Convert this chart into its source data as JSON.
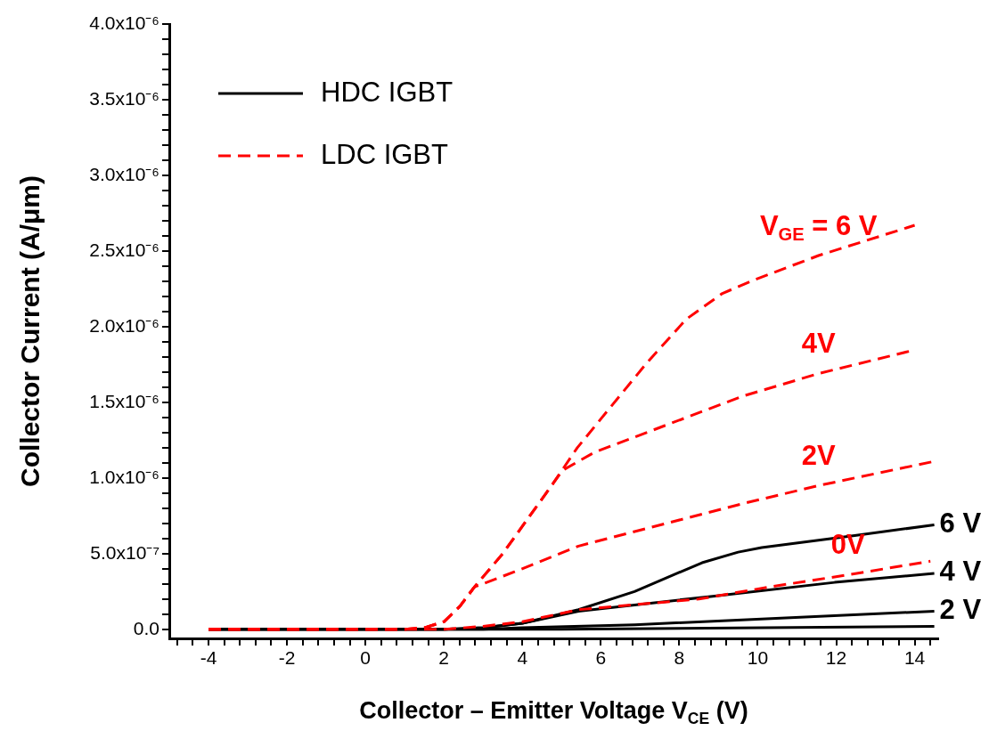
{
  "chart_data": {
    "type": "line",
    "xlabel": "Collector – Emitter Voltage V$_{CE}$ (V)",
    "ylabel": "Collector Current (A/μm)",
    "xlim": [
      -5,
      14.6
    ],
    "ylim": [
      -6e-08,
      4e-06
    ],
    "xticks": [
      {
        "value": -4.8,
        "label": null
      },
      {
        "value": -4.4,
        "label": null
      },
      -4,
      {
        "value": -3.6,
        "label": null
      },
      {
        "value": -3.2,
        "label": null
      },
      {
        "value": -2.8,
        "label": null
      },
      {
        "value": -2.4,
        "label": null
      },
      -2,
      {
        "value": -1.6,
        "label": null
      },
      {
        "value": -1.2,
        "label": null
      },
      {
        "value": -0.8,
        "label": null
      },
      {
        "value": -0.4,
        "label": null
      },
      0,
      {
        "value": 0.4,
        "label": null
      },
      {
        "value": 0.8,
        "label": null
      },
      {
        "value": 1.2,
        "label": null
      },
      {
        "value": 1.6,
        "label": null
      },
      2,
      {
        "value": 2.4,
        "label": null
      },
      {
        "value": 2.8,
        "label": null
      },
      {
        "value": 3.2,
        "label": null
      },
      {
        "value": 3.6,
        "label": null
      },
      4,
      {
        "value": 4.4,
        "label": null
      },
      {
        "value": 4.8,
        "label": null
      },
      {
        "value": 5.2,
        "label": null
      },
      {
        "value": 5.6,
        "label": null
      },
      6,
      {
        "value": 6.4,
        "label": null
      },
      {
        "value": 6.8,
        "label": null
      },
      {
        "value": 7.2,
        "label": null
      },
      {
        "value": 7.6,
        "label": null
      },
      8,
      {
        "value": 8.4,
        "label": null
      },
      {
        "value": 8.8,
        "label": null
      },
      {
        "value": 9.2,
        "label": null
      },
      {
        "value": 9.6,
        "label": null
      },
      10,
      {
        "value": 10.4,
        "label": null
      },
      {
        "value": 10.8,
        "label": null
      },
      {
        "value": 11.2,
        "label": null
      },
      {
        "value": 11.6,
        "label": null
      },
      12,
      {
        "value": 12.4,
        "label": null
      },
      {
        "value": 12.8,
        "label": null
      },
      {
        "value": 13.2,
        "label": null
      },
      {
        "value": 13.6,
        "label": null
      },
      14,
      {
        "value": 14.4,
        "label": null
      }
    ],
    "yticks": [
      {
        "value": 0,
        "label": "0.0"
      },
      {
        "value": 1e-07,
        "label": null
      },
      {
        "value": 2e-07,
        "label": null
      },
      {
        "value": 3e-07,
        "label": null
      },
      {
        "value": 4e-07,
        "label": null
      },
      {
        "value": 5e-07,
        "label": "5.0x10⁻⁷"
      },
      {
        "value": 6e-07,
        "label": null
      },
      {
        "value": 7e-07,
        "label": null
      },
      {
        "value": 8e-07,
        "label": null
      },
      {
        "value": 9e-07,
        "label": null
      },
      {
        "value": 1e-06,
        "label": "1.0x10⁻⁶"
      },
      {
        "value": 1.1e-06,
        "label": null
      },
      {
        "value": 1.2e-06,
        "label": null
      },
      {
        "value": 1.3e-06,
        "label": null
      },
      {
        "value": 1.4e-06,
        "label": null
      },
      {
        "value": 1.5e-06,
        "label": "1.5x10⁻⁶"
      },
      {
        "value": 1.6e-06,
        "label": null
      },
      {
        "value": 1.7e-06,
        "label": null
      },
      {
        "value": 1.8e-06,
        "label": null
      },
      {
        "value": 1.9e-06,
        "label": null
      },
      {
        "value": 2e-06,
        "label": "2.0x10⁻⁶"
      },
      {
        "value": 2.1e-06,
        "label": null
      },
      {
        "value": 2.2e-06,
        "label": null
      },
      {
        "value": 2.3e-06,
        "label": null
      },
      {
        "value": 2.4e-06,
        "label": null
      },
      {
        "value": 2.5e-06,
        "label": "2.5x10⁻⁶"
      },
      {
        "value": 2.6e-06,
        "label": null
      },
      {
        "value": 2.7e-06,
        "label": null
      },
      {
        "value": 2.8e-06,
        "label": null
      },
      {
        "value": 2.9e-06,
        "label": null
      },
      {
        "value": 3e-06,
        "label": "3.0x10⁻⁶"
      },
      {
        "value": 3.1e-06,
        "label": null
      },
      {
        "value": 3.2e-06,
        "label": null
      },
      {
        "value": 3.3e-06,
        "label": null
      },
      {
        "value": 3.4e-06,
        "label": null
      },
      {
        "value": 3.5e-06,
        "label": "3.5x10⁻⁶"
      },
      {
        "value": 3.6e-06,
        "label": null
      },
      {
        "value": 3.7e-06,
        "label": null
      },
      {
        "value": 3.8e-06,
        "label": null
      },
      {
        "value": 3.9e-06,
        "label": null
      },
      {
        "value": 4e-06,
        "label": "4.0x10⁻⁶"
      }
    ],
    "legend": "top left",
    "marker": "none",
    "series": [
      {
        "name": "HDC IGBT",
        "color": "#000000",
        "line_style": "solid",
        "x": [
          -4,
          2,
          3,
          4,
          5.43,
          6.86,
          8.58,
          9.5,
          10.1,
          12.47,
          14.5
        ],
        "values": [
          0,
          0,
          1e-08,
          4e-08,
          1.3e-07,
          2.5e-07,
          4.4e-07,
          5.1e-07,
          5.4e-07,
          6.2e-07,
          6.9e-07
        ]
      },
      {
        "color": "#000000",
        "line_style": "solid",
        "x": [
          -4,
          2,
          3,
          4,
          5.43,
          8.9,
          11.96,
          14.5
        ],
        "values": [
          0,
          0,
          1e-08,
          4e-08,
          1.2e-07,
          2.2e-07,
          3.1e-07,
          3.7e-07
        ]
      },
      {
        "color": "#000000",
        "line_style": "solid",
        "x": [
          -4,
          3,
          4,
          6.86,
          14.5
        ],
        "values": [
          0,
          0,
          1e-08,
          3e-08,
          1.2e-07
        ]
      },
      {
        "color": "#000000",
        "line_style": "solid",
        "x": [
          -4,
          5,
          14.5
        ],
        "values": [
          0,
          0,
          2e-08
        ]
      },
      {
        "name": "LDC IGBT",
        "color": "#ff0000",
        "line_style": "dashed",
        "x": [
          -4,
          1,
          1.5,
          2,
          2.4,
          2.78,
          3.5,
          4.19,
          4.72,
          5.4,
          6.19,
          7.17,
          8.18,
          9.1,
          9.92,
          11.55,
          14
        ],
        "values": [
          0,
          0,
          1e-08,
          5e-08,
          1.5e-07,
          2.8e-07,
          5e-07,
          7.5e-07,
          9.4e-07,
          1.2e-06,
          1.45e-06,
          1.76e-06,
          2.05e-06,
          2.22e-06,
          2.31e-06,
          2.47e-06,
          2.67e-06
        ]
      },
      {
        "color": "#ff0000",
        "line_style": "dashed",
        "x": [
          -4,
          1,
          1.5,
          2,
          2.4,
          2.78,
          3.5,
          4.19,
          4.72,
          5.02,
          5.84,
          7.67,
          9.61,
          11.55,
          13.9
        ],
        "values": [
          0,
          0,
          1e-08,
          5e-08,
          1.5e-07,
          2.8e-07,
          5e-07,
          7.5e-07,
          9.4e-07,
          1.05e-06,
          1.17e-06,
          1.35e-06,
          1.54e-06,
          1.69e-06,
          1.84e-06
        ]
      },
      {
        "color": "#ff0000",
        "line_style": "dashed",
        "x": [
          -4,
          1,
          1.5,
          2,
          2.4,
          2.78,
          3.8,
          5.43,
          7.67,
          9.61,
          11.55,
          14.5
        ],
        "values": [
          0,
          0,
          1e-08,
          5e-08,
          1.5e-07,
          2.8e-07,
          3.8e-07,
          5.5e-07,
          7e-07,
          8.3e-07,
          9.5e-07,
          1.11e-06
        ]
      },
      {
        "color": "#ff0000",
        "line_style": "dashed",
        "x": [
          -4,
          2,
          3,
          4,
          5.43,
          8.5,
          10.3,
          12.3,
          14.4
        ],
        "values": [
          0,
          0,
          2e-08,
          5e-08,
          1.3e-07,
          2e-07,
          2.8e-07,
          3.6e-07,
          4.5e-07
        ]
      }
    ],
    "annotations": [
      {
        "text": "V$_{GE}$ = 6 V",
        "x": 11.55,
        "y": 2.47e-06
      },
      {
        "text": "4V",
        "x": 11.55,
        "y": 1.69e-06
      },
      {
        "text": "2V",
        "x": 11.55,
        "y": 9.5e-07
      },
      {
        "text": "0V",
        "x": 12.3,
        "y": 3.6e-07
      },
      {
        "text": "6 V",
        "x": 14.5,
        "y": 6.9e-07
      },
      {
        "text": "4 V",
        "x": 14.5,
        "y": 3.7e-07
      },
      {
        "text": "2 V",
        "x": 14.5,
        "y": 1.2e-07
      }
    ]
  }
}
